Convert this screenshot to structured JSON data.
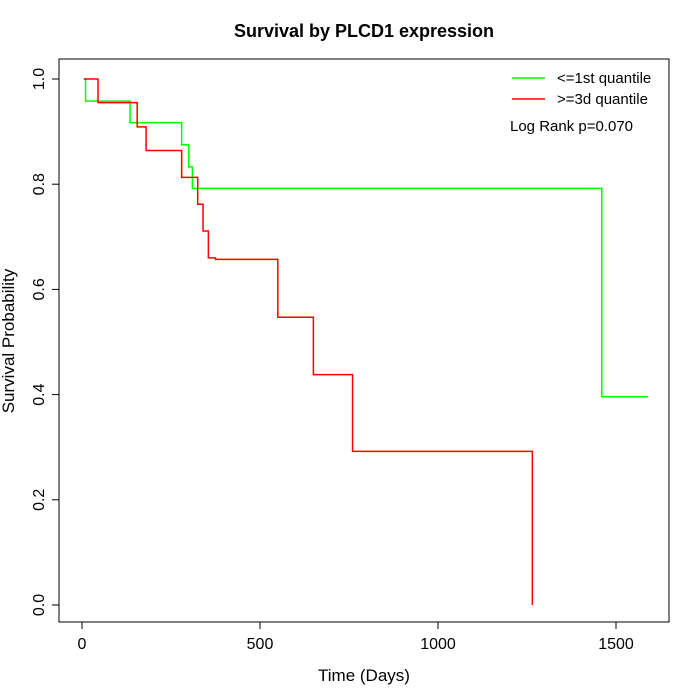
{
  "chart_data": {
    "type": "line",
    "title": "Survival by PLCD1 expression",
    "xlabel": "Time (Days)",
    "ylabel": "Survival Probability",
    "xlim": [
      0,
      1650
    ],
    "ylim": [
      0,
      1.0
    ],
    "xticks": [
      0,
      500,
      1000,
      1500
    ],
    "yticks": [
      0.0,
      0.2,
      0.4,
      0.6,
      0.8,
      1.0
    ],
    "grid": false,
    "legend_position": "top-right",
    "annotation": "Log Rank p=0.070",
    "series": [
      {
        "name": "<=1st quantile",
        "color": "#00ff00",
        "step": true,
        "x": [
          5,
          10,
          135,
          280,
          300,
          310,
          320,
          1460,
          1590
        ],
        "y": [
          1.0,
          0.958,
          0.917,
          0.875,
          0.833,
          0.792,
          0.792,
          0.396,
          0.396
        ]
      },
      {
        "name": ">=3d quantile",
        "color": "#ff0000",
        "step": true,
        "x": [
          5,
          45,
          155,
          180,
          280,
          325,
          340,
          355,
          375,
          550,
          650,
          760,
          1265,
          1265
        ],
        "y": [
          1.0,
          0.955,
          0.909,
          0.864,
          0.813,
          0.762,
          0.711,
          0.66,
          0.657,
          0.547,
          0.438,
          0.292,
          0.292,
          0.0
        ]
      }
    ]
  }
}
